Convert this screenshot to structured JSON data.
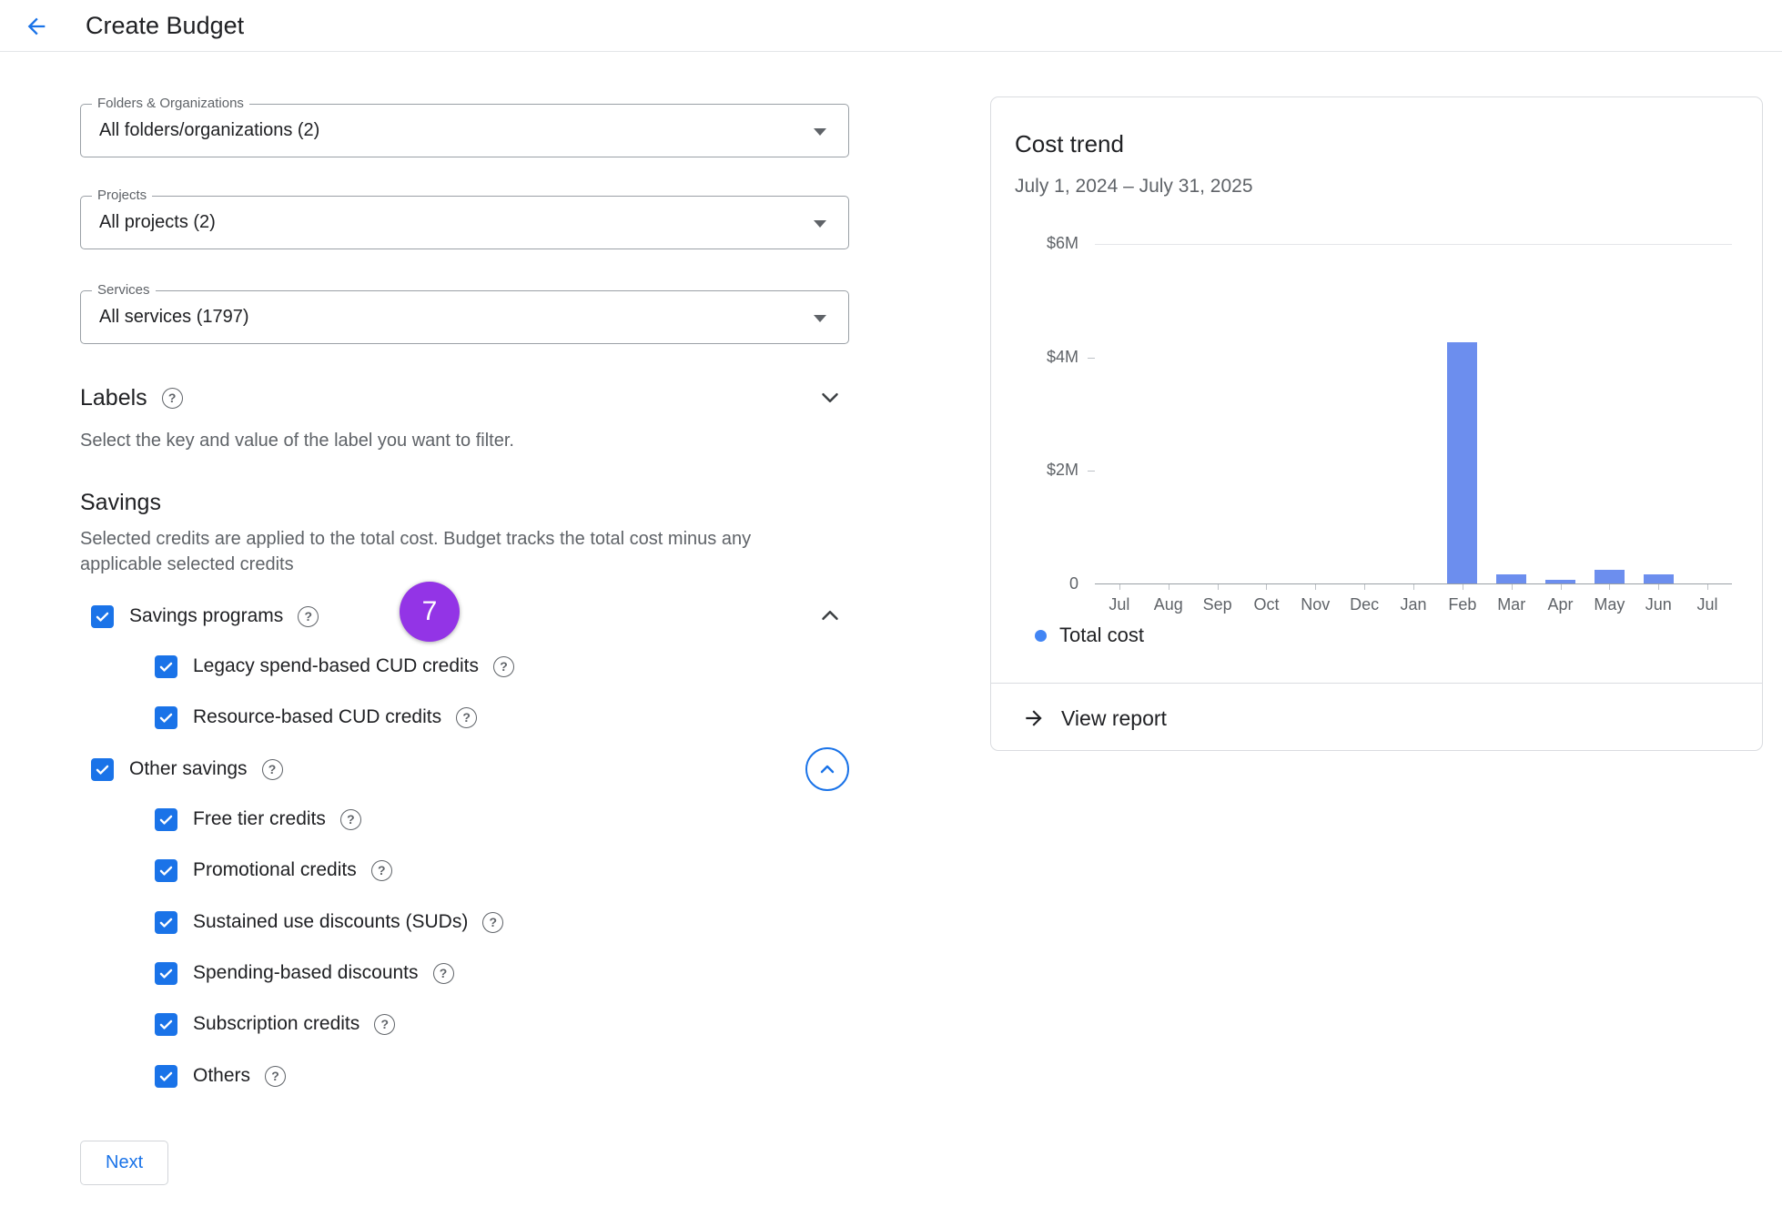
{
  "header": {
    "title": "Create Budget"
  },
  "filters": {
    "folders_orgs": {
      "label": "Folders & Organizations",
      "value": "All folders/organizations (2)"
    },
    "projects": {
      "label": "Projects",
      "value": "All projects (2)"
    },
    "services": {
      "label": "Services",
      "value": "All services (1797)"
    }
  },
  "labels_section": {
    "title": "Labels",
    "hint": "Select the key and value of the label you want to filter."
  },
  "savings": {
    "title": "Savings",
    "description": "Selected credits are applied to the total cost. Budget tracks the total cost minus any applicable selected credits",
    "step_badge": "7",
    "groups": [
      {
        "label": "Savings programs",
        "checked": true,
        "expanded": true,
        "children": [
          {
            "label": "Legacy spend-based CUD credits",
            "checked": true
          },
          {
            "label": "Resource-based CUD credits",
            "checked": true
          }
        ]
      },
      {
        "label": "Other savings",
        "checked": true,
        "expanded": true,
        "children": [
          {
            "label": "Free tier credits",
            "checked": true
          },
          {
            "label": "Promotional credits",
            "checked": true
          },
          {
            "label": "Sustained use discounts (SUDs)",
            "checked": true
          },
          {
            "label": "Spending-based discounts",
            "checked": true
          },
          {
            "label": "Subscription credits",
            "checked": true
          },
          {
            "label": "Others",
            "checked": true
          }
        ]
      }
    ]
  },
  "actions": {
    "next": "Next"
  },
  "cost_trend_card": {
    "title": "Cost trend",
    "date_range": "July 1, 2024 – July 31, 2025",
    "legend": "Total cost",
    "view_report": "View report"
  },
  "chart_data": {
    "type": "bar",
    "title": "Cost trend",
    "subtitle": "July 1, 2024 – July 31, 2025",
    "categories": [
      "Jul",
      "Aug",
      "Sep",
      "Oct",
      "Nov",
      "Dec",
      "Jan",
      "Feb",
      "Mar",
      "Apr",
      "May",
      "Jun",
      "Jul"
    ],
    "series": [
      {
        "name": "Total cost",
        "values": [
          0,
          0,
          0,
          0,
          0,
          0,
          0,
          4.25,
          0.16,
          0.06,
          0.24,
          0.16,
          0
        ]
      }
    ],
    "unit": "$M",
    "ylim": [
      0,
      6
    ],
    "y_ticks": [
      {
        "label": "$6M",
        "value": 6
      },
      {
        "label": "$4M",
        "value": 4
      },
      {
        "label": "$2M",
        "value": 2
      },
      {
        "label": "0",
        "value": 0
      }
    ],
    "legend_position": "bottom-left",
    "bar_color": "#6c8eee",
    "legend_dot_color": "#4285f4"
  },
  "colors": {
    "accent": "#1a73e8",
    "badge_purple": "#9334e6"
  }
}
